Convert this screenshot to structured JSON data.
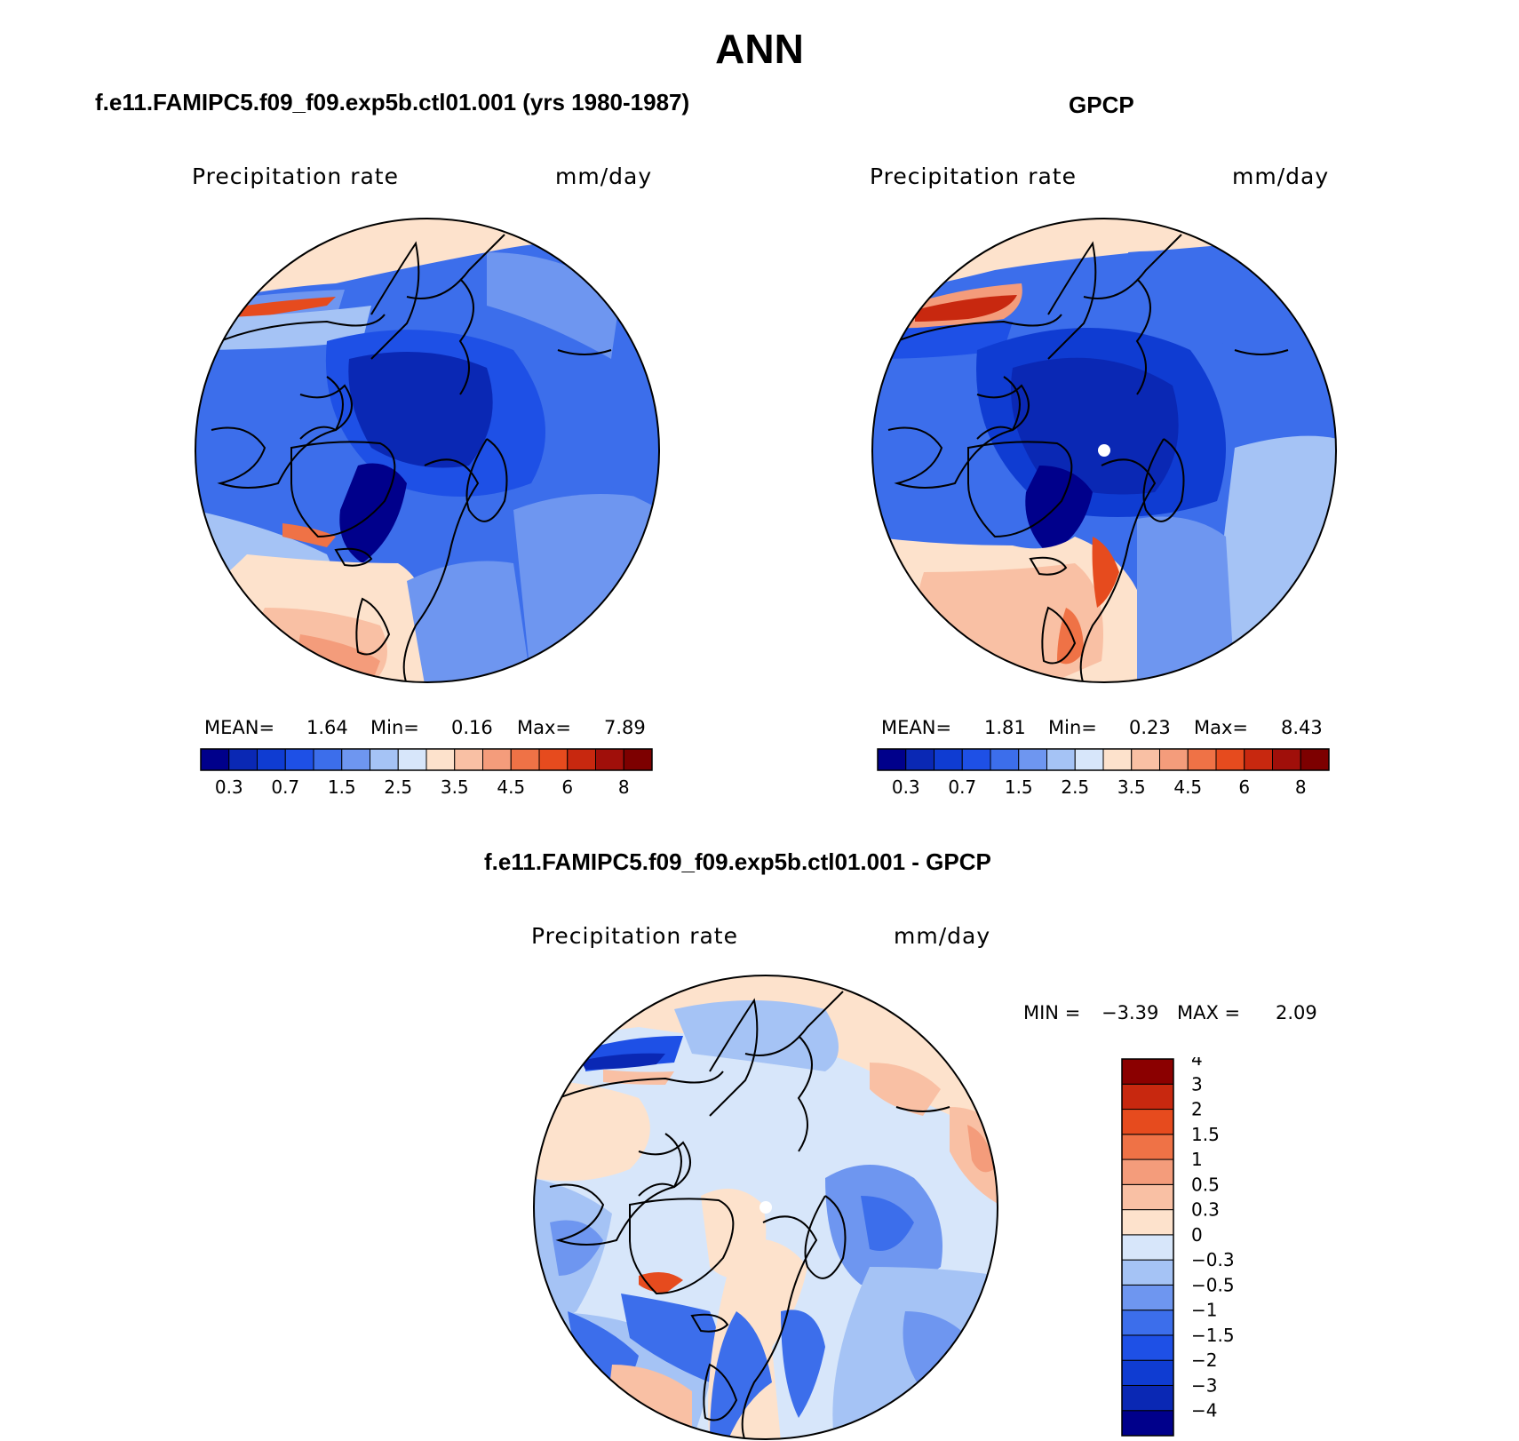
{
  "figure": {
    "title": "ANN"
  },
  "panels": {
    "model": {
      "title": "f.e11.FAMIPC5.f09_f09.exp5b.ctl01.001 (yrs 1980-1987)",
      "variable": "Precipitation rate",
      "units": "mm/day",
      "stats": {
        "mean_label": "MEAN=",
        "mean": "1.64",
        "min_label": "Min=",
        "min": "0.16",
        "max_label": "Max=",
        "max": "7.89"
      }
    },
    "obs": {
      "title": "GPCP",
      "variable": "Precipitation rate",
      "units": "mm/day",
      "stats": {
        "mean_label": "MEAN=",
        "mean": "1.81",
        "min_label": "Min=",
        "min": "0.23",
        "max_label": "Max=",
        "max": "8.43"
      }
    },
    "diff": {
      "title": "f.e11.FAMIPC5.f09_f09.exp5b.ctl01.001 - GPCP",
      "variable": "Precipitation rate",
      "units": "mm/day",
      "stats": {
        "min_label": "MIN =",
        "min": "−3.39",
        "max_label": "MAX =",
        "max": "2.09"
      }
    }
  },
  "colorbars": {
    "precip": {
      "colors": [
        "#00008b",
        "#0a28b4",
        "#0f3cd2",
        "#1e50e6",
        "#3c6eeb",
        "#6e96f0",
        "#a5c3f5",
        "#d7e6fa",
        "#fde2cc",
        "#f9c0a4",
        "#f49c7b",
        "#ef7246",
        "#e64b1e",
        "#c8280f",
        "#a00f0a",
        "#7d0000"
      ],
      "tick_labels": [
        "0.3",
        "0.7",
        "1.5",
        "2.5",
        "3.5",
        "4.5",
        "6",
        "8"
      ]
    },
    "diff": {
      "colors": [
        "#00008b",
        "#0a28b4",
        "#0f3cd2",
        "#1e50e6",
        "#3c6eeb",
        "#6e96f0",
        "#a5c3f5",
        "#d7e6fa",
        "#fde2cc",
        "#f9c0a4",
        "#f49c7b",
        "#ef7246",
        "#e64b1e",
        "#c8280f",
        "#8b0000"
      ],
      "tick_labels": [
        "−4",
        "−3",
        "−2",
        "−1.5",
        "−1",
        "−0.5",
        "−0.3",
        "0",
        "0.3",
        "0.5",
        "1",
        "1.5",
        "2",
        "3",
        "4"
      ]
    }
  },
  "chart_data": [
    {
      "type": "heatmap",
      "projection": "north polar stereographic",
      "title": "f.e11.FAMIPC5.f09_f09.exp5b.ctl01.001 (yrs 1980-1987)",
      "variable": "Precipitation rate",
      "units": "mm/day",
      "levels": [
        0.2,
        0.3,
        0.5,
        0.7,
        1,
        1.5,
        2,
        2.5,
        3,
        3.5,
        4,
        4.5,
        5,
        6,
        7,
        8
      ],
      "mean": 1.64,
      "min": 0.16,
      "max": 7.89
    },
    {
      "type": "heatmap",
      "projection": "north polar stereographic",
      "title": "GPCP",
      "variable": "Precipitation rate",
      "units": "mm/day",
      "levels": [
        0.2,
        0.3,
        0.5,
        0.7,
        1,
        1.5,
        2,
        2.5,
        3,
        3.5,
        4,
        4.5,
        5,
        6,
        7,
        8
      ],
      "mean": 1.81,
      "min": 0.23,
      "max": 8.43
    },
    {
      "type": "heatmap",
      "projection": "north polar stereographic",
      "title": "f.e11.FAMIPC5.f09_f09.exp5b.ctl01.001 - GPCP",
      "variable": "Precipitation rate",
      "units": "mm/day",
      "levels": [
        -4,
        -3,
        -2,
        -1.5,
        -1,
        -0.5,
        -0.3,
        0,
        0.3,
        0.5,
        1,
        1.5,
        2,
        3,
        4
      ],
      "min": -3.39,
      "max": 2.09
    }
  ]
}
